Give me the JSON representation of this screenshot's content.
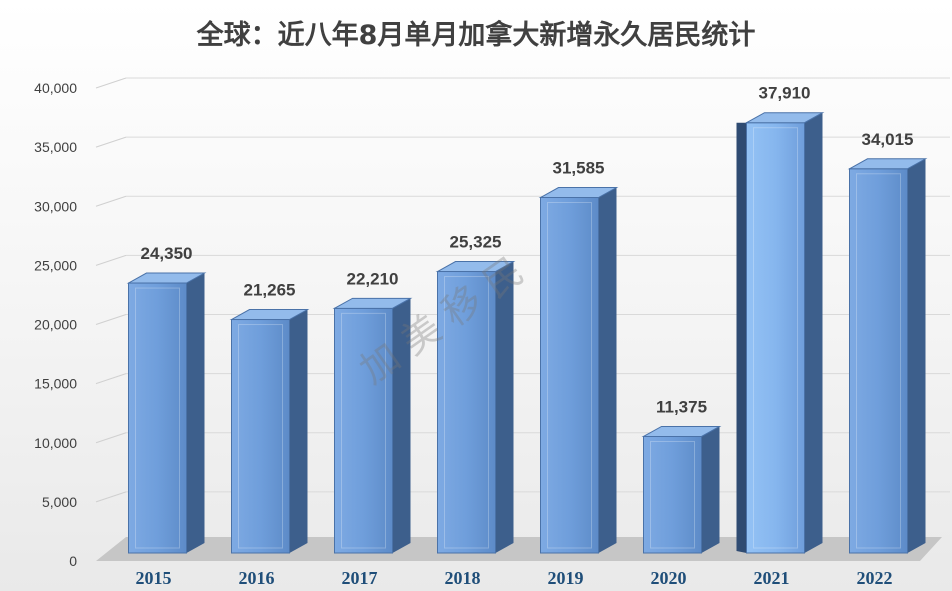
{
  "chart_data": {
    "type": "bar",
    "title": "全球：近八年8月单月加拿大新增永久居民统计",
    "categories": [
      "2015",
      "2016",
      "2017",
      "2018",
      "2019",
      "2020",
      "2021",
      "2022"
    ],
    "values": [
      24350,
      21265,
      22210,
      25325,
      31585,
      11375,
      37910,
      34015
    ],
    "data_labels": [
      "24,350",
      "21,265",
      "22,210",
      "25,325",
      "31,585",
      "11,375",
      "37,910",
      "34,015"
    ],
    "y_ticks": [
      "0",
      "5,000",
      "10,000",
      "15,000",
      "20,000",
      "25,000",
      "30,000",
      "35,000",
      "40,000"
    ],
    "ylim": [
      0,
      40000
    ],
    "grid": true,
    "legend": "none",
    "style": "3d-column"
  },
  "watermark": "加 美 移 民",
  "colors": {
    "bar_front": "#6f9edb",
    "bar_side": "#3d5f8c",
    "bar_top": "#93bbeb",
    "x_tick": "#1f4e79",
    "text": "#404040"
  }
}
